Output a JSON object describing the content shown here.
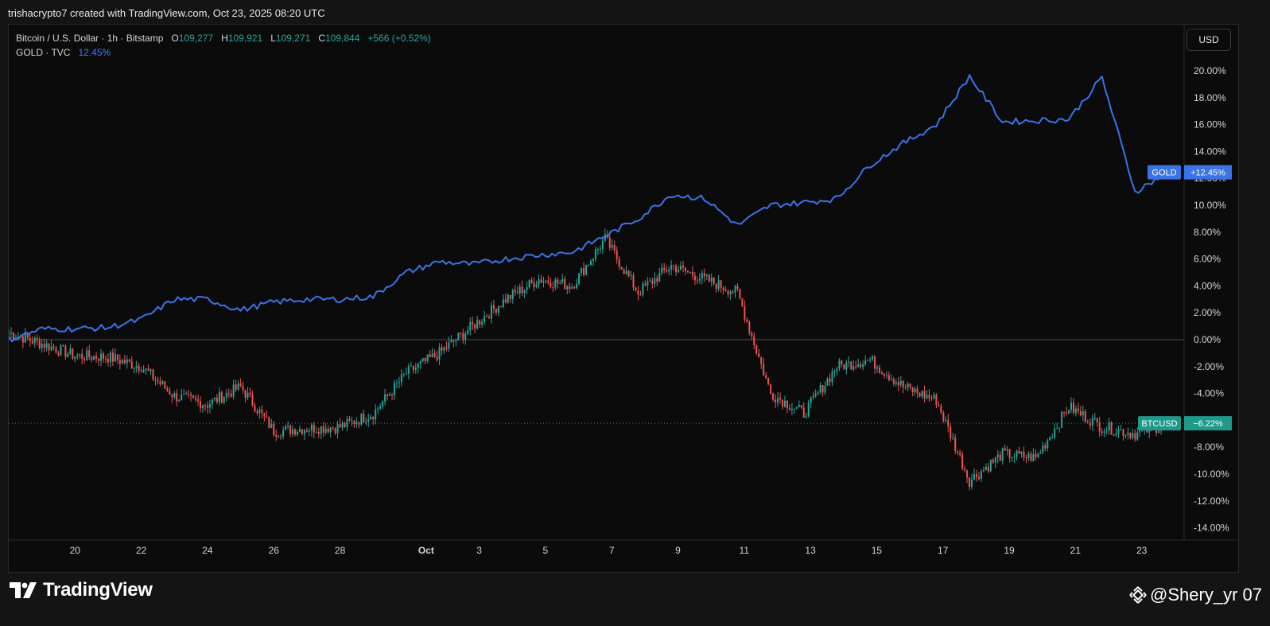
{
  "header": {
    "credit": "trishacrypto7 created with TradingView.com, Oct 23, 2025 08:20 UTC"
  },
  "legend": {
    "symbol": "Bitcoin / U.S. Dollar · 1h · Bitstamp",
    "o_label": "O",
    "o_value": "109,277",
    "h_label": "H",
    "h_value": "109,921",
    "l_label": "L",
    "l_value": "109,271",
    "c_label": "C",
    "c_value": "109,844",
    "change": "+566 (+0.52%)",
    "gold_symbol": "GOLD · TVC",
    "gold_value": "12.45%"
  },
  "toolbar": {
    "currency_label": "USD"
  },
  "footer": {
    "brand": "TradingView",
    "watermark": "@Shery_yr 07"
  },
  "colors": {
    "gold_line": "#3a73e6",
    "up": "#26a69a",
    "down": "#ef5350",
    "background": "#0b0b0c"
  },
  "chart_data": {
    "type": "line",
    "y_unit": "%",
    "ylim": [
      -14,
      21
    ],
    "y_ticks": [
      "20.00%",
      "18.00%",
      "16.00%",
      "14.00%",
      "12.00%",
      "10.00%",
      "8.00%",
      "6.00%",
      "4.00%",
      "2.00%",
      "0.00%",
      "-2.00%",
      "-4.00%",
      "-6.00%",
      "-8.00%",
      "-10.00%",
      "-12.00%",
      "-14.00%"
    ],
    "x_ticks": [
      "20",
      "22",
      "24",
      "26",
      "28",
      "Oct",
      "3",
      "5",
      "7",
      "9",
      "11",
      "13",
      "15",
      "17",
      "19",
      "21",
      "23"
    ],
    "x": [
      "Sep 18",
      "Sep 19",
      "Sep 20",
      "Sep 21",
      "Sep 22",
      "Sep 23",
      "Sep 24",
      "Sep 25",
      "Sep 26",
      "Sep 27",
      "Sep 28",
      "Sep 29",
      "Sep 30",
      "Oct 1",
      "Oct 2",
      "Oct 3",
      "Oct 4",
      "Oct 5",
      "Oct 6",
      "Oct 7",
      "Oct 8",
      "Oct 9",
      "Oct 10",
      "Oct 11",
      "Oct 12",
      "Oct 13",
      "Oct 14",
      "Oct 15",
      "Oct 16",
      "Oct 17",
      "Oct 18",
      "Oct 19",
      "Oct 20",
      "Oct 21",
      "Oct 22",
      "Oct 23"
    ],
    "series": [
      {
        "name": "GOLD",
        "values": [
          0.0,
          0.8,
          0.8,
          0.9,
          1.5,
          3.0,
          3.0,
          2.2,
          2.8,
          3.0,
          3.0,
          3.2,
          5.0,
          5.8,
          5.6,
          6.0,
          6.3,
          6.5,
          7.7,
          9.0,
          10.8,
          10.5,
          8.5,
          10.0,
          10.2,
          10.5,
          13.0,
          14.6,
          16.0,
          19.6,
          16.2,
          16.3,
          16.4,
          19.5,
          11.0,
          12.45
        ],
        "end_label": "GOLD",
        "end_value": "+12.45%"
      },
      {
        "name": "BTCUSD",
        "values": [
          0.5,
          -0.3,
          -1.2,
          -1.3,
          -2.0,
          -4.2,
          -4.8,
          -3.5,
          -6.8,
          -6.6,
          -6.5,
          -5.5,
          -2.5,
          -1.0,
          1.0,
          3.0,
          4.5,
          4.0,
          7.5,
          3.5,
          5.5,
          4.5,
          3.5,
          -4.0,
          -5.5,
          -2.0,
          -1.5,
          -3.5,
          -4.5,
          -10.5,
          -8.5,
          -8.8,
          -5.0,
          -6.5,
          -7.0,
          -6.22
        ],
        "end_label": "BTCUSD",
        "end_value": "−6.22%"
      }
    ]
  }
}
